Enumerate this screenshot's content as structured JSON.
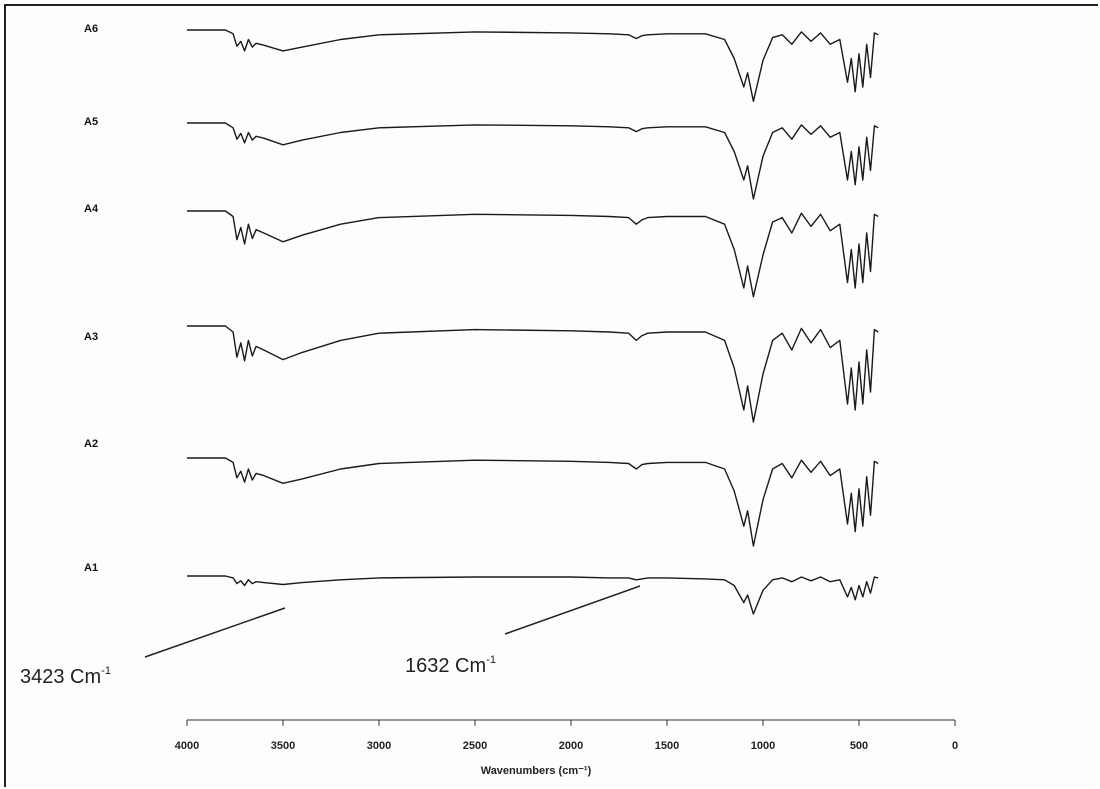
{
  "chart_data": {
    "type": "line",
    "xlabel": "Wavenumbers (cm⁻¹)",
    "ylabel": "",
    "xlim": [
      4000,
      0
    ],
    "x_ticks": [
      4000,
      3500,
      3000,
      2500,
      2000,
      1500,
      1000,
      500,
      0
    ],
    "grid": false,
    "x_axis_reversed": true,
    "series": [
      {
        "name": "A6",
        "x": [
          4000,
          3800,
          3760,
          3740,
          3720,
          3700,
          3680,
          3660,
          3640,
          3600,
          3500,
          3400,
          3200,
          3000,
          2500,
          2000,
          1800,
          1700,
          1660,
          1630,
          1600,
          1500,
          1300,
          1200,
          1150,
          1100,
          1080,
          1050,
          1000,
          950,
          900,
          850,
          800,
          750,
          700,
          650,
          600,
          560,
          540,
          520,
          500,
          480,
          460,
          440,
          420,
          400
        ],
        "y": [
          100,
          100,
          96,
          83,
          88,
          78,
          90,
          82,
          86,
          84,
          78,
          82,
          90,
          95,
          98,
          97,
          96,
          95,
          91,
          94,
          95,
          96,
          96,
          90,
          70,
          40,
          55,
          25,
          68,
          92,
          95,
          85,
          98,
          88,
          97,
          85,
          90,
          45,
          70,
          35,
          75,
          40,
          85,
          50,
          97,
          95
        ]
      },
      {
        "name": "A5",
        "x": [
          4000,
          3800,
          3760,
          3740,
          3720,
          3700,
          3680,
          3660,
          3640,
          3600,
          3500,
          3400,
          3200,
          3000,
          2500,
          2000,
          1800,
          1700,
          1660,
          1630,
          1600,
          1500,
          1300,
          1200,
          1150,
          1100,
          1080,
          1050,
          1000,
          950,
          900,
          850,
          800,
          750,
          700,
          650,
          600,
          560,
          540,
          520,
          500,
          480,
          460,
          440,
          420,
          400
        ],
        "y": [
          100,
          100,
          95,
          83,
          89,
          79,
          90,
          82,
          86,
          84,
          77,
          82,
          90,
          95,
          98,
          97,
          96,
          95,
          91,
          94,
          95,
          96,
          96,
          90,
          70,
          40,
          55,
          20,
          65,
          90,
          95,
          83,
          98,
          88,
          97,
          85,
          90,
          40,
          70,
          35,
          75,
          40,
          85,
          50,
          97,
          95
        ]
      },
      {
        "name": "A4",
        "x": [
          4000,
          3800,
          3760,
          3740,
          3720,
          3700,
          3680,
          3660,
          3640,
          3600,
          3500,
          3400,
          3200,
          3000,
          2500,
          2000,
          1800,
          1700,
          1660,
          1630,
          1600,
          1500,
          1300,
          1200,
          1150,
          1100,
          1080,
          1050,
          1000,
          950,
          900,
          850,
          800,
          750,
          700,
          650,
          600,
          560,
          540,
          520,
          500,
          480,
          460,
          440,
          420,
          400
        ],
        "y": [
          100,
          100,
          95,
          74,
          85,
          70,
          88,
          75,
          83,
          80,
          72,
          78,
          88,
          94,
          97,
          96,
          95,
          94,
          88,
          92,
          94,
          95,
          95,
          88,
          65,
          30,
          50,
          22,
          60,
          90,
          94,
          80,
          98,
          86,
          97,
          82,
          88,
          35,
          65,
          30,
          70,
          35,
          80,
          45,
          97,
          95
        ]
      },
      {
        "name": "A3",
        "x": [
          4000,
          3800,
          3760,
          3740,
          3720,
          3700,
          3680,
          3660,
          3640,
          3600,
          3500,
          3400,
          3200,
          3000,
          2500,
          2000,
          1800,
          1700,
          1660,
          1630,
          1600,
          1500,
          1300,
          1200,
          1150,
          1100,
          1080,
          1050,
          1000,
          950,
          900,
          850,
          800,
          750,
          700,
          650,
          600,
          560,
          540,
          520,
          500,
          480,
          460,
          440,
          420,
          400
        ],
        "y": [
          100,
          100,
          95,
          74,
          86,
          71,
          88,
          75,
          83,
          80,
          72,
          78,
          88,
          94,
          97,
          96,
          95,
          94,
          88,
          92,
          94,
          95,
          95,
          88,
          65,
          30,
          50,
          20,
          60,
          88,
          94,
          80,
          98,
          86,
          97,
          82,
          88,
          35,
          65,
          30,
          70,
          35,
          80,
          45,
          97,
          95
        ]
      },
      {
        "name": "A2",
        "x": [
          4000,
          3800,
          3760,
          3740,
          3720,
          3700,
          3680,
          3660,
          3640,
          3600,
          3500,
          3400,
          3200,
          3000,
          2500,
          2000,
          1800,
          1700,
          1660,
          1630,
          1600,
          1500,
          1300,
          1200,
          1150,
          1100,
          1080,
          1050,
          1000,
          950,
          900,
          850,
          800,
          750,
          700,
          650,
          600,
          560,
          540,
          520,
          500,
          480,
          460,
          440,
          420,
          400
        ],
        "y": [
          100,
          100,
          96,
          82,
          88,
          78,
          90,
          80,
          86,
          84,
          77,
          81,
          90,
          95,
          98,
          97,
          96,
          95,
          90,
          94,
          95,
          96,
          96,
          90,
          70,
          38,
          52,
          20,
          62,
          90,
          95,
          82,
          98,
          87,
          97,
          84,
          90,
          40,
          68,
          33,
          72,
          38,
          83,
          48,
          97,
          95
        ]
      },
      {
        "name": "A1",
        "x": [
          4000,
          3800,
          3760,
          3740,
          3720,
          3700,
          3680,
          3660,
          3640,
          3600,
          3500,
          3400,
          3200,
          3000,
          2500,
          2000,
          1800,
          1700,
          1660,
          1630,
          1600,
          1500,
          1300,
          1200,
          1150,
          1100,
          1080,
          1050,
          1000,
          950,
          900,
          850,
          800,
          750,
          700,
          650,
          600,
          560,
          540,
          520,
          500,
          480,
          460,
          440,
          420,
          400
        ],
        "y": [
          100,
          100,
          98,
          92,
          95,
          90,
          96,
          92,
          94,
          93,
          91,
          93,
          96,
          98,
          99,
          99,
          98,
          98,
          96,
          97,
          98,
          98,
          97,
          96,
          90,
          72,
          80,
          60,
          85,
          96,
          98,
          94,
          99,
          95,
          99,
          94,
          96,
          78,
          88,
          75,
          90,
          78,
          94,
          82,
          99,
          98
        ]
      }
    ],
    "annotations": [
      {
        "text": "3423 Cm",
        "sup": "-1",
        "x": 3423
      },
      {
        "text": "1632 Cm",
        "sup": "-1",
        "x": 1632
      }
    ]
  }
}
